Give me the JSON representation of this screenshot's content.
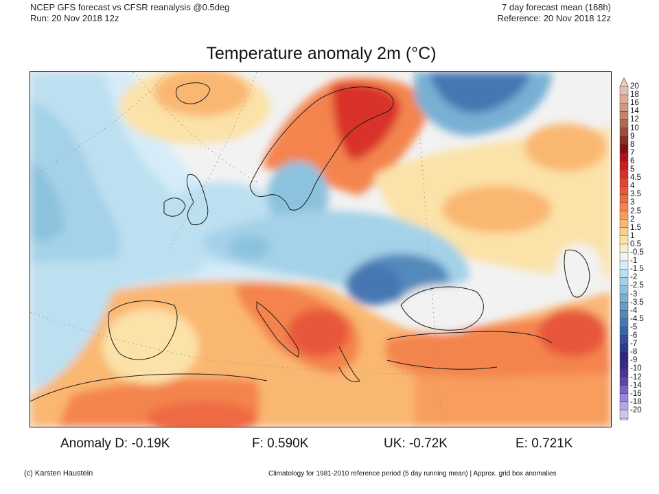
{
  "header": {
    "left_line1": "NCEP GFS forecast vs CFSR reanalysis @0.5deg",
    "left_line2": "Run: 20 Nov 2018 12z",
    "right_line1": "7 day forecast mean (168h)",
    "right_line2": "Reference: 20 Nov 2018 12z"
  },
  "title": "Temperature anomaly 2m (°C)",
  "map": {
    "region": "Europe, North Atlantic, North Africa, Middle East",
    "variable": "2m temperature anomaly",
    "units": "°C",
    "features": [
      {
        "name": "Scandinavia/Kola warm anomaly",
        "level": "4 to 7"
      },
      {
        "name": "Northern Russia cold anomaly",
        "level": "-3 to -5"
      },
      {
        "name": "Central/Eastern Europe cold anomaly",
        "level": "-1.5 to -4"
      },
      {
        "name": "North Atlantic cool anomaly",
        "level": "-1 to -3"
      },
      {
        "name": "Mediterranean, Balkans, Turkey, North Africa warm anomaly",
        "level": "2 to 5"
      },
      {
        "name": "Iceland warm anomaly",
        "level": "1.5 to 3"
      }
    ]
  },
  "colorbar": {
    "labels": [
      "20",
      "18",
      "16",
      "14",
      "12",
      "10",
      "9",
      "8",
      "7",
      "6",
      "5",
      "4.5",
      "4",
      "3.5",
      "3",
      "2.5",
      "2",
      "1.5",
      "1",
      "0.5",
      "-0.5",
      "-1",
      "-1.5",
      "-2",
      "-2.5",
      "-3",
      "-3.5",
      "-4",
      "-4.5",
      "-5",
      "-6",
      "-7",
      "-8",
      "-9",
      "-10",
      "-12",
      "-14",
      "-16",
      "-18",
      "-20"
    ],
    "colors": [
      "#e8bfae",
      "#dcab95",
      "#d09a82",
      "#c2856c",
      "#ae6a55",
      "#9c4e3c",
      "#8a2d22",
      "#8e0a0d",
      "#b0141a",
      "#c8201f",
      "#d83129",
      "#e24431",
      "#e8573a",
      "#ee6b42",
      "#f4844e",
      "#f79d5d",
      "#fab772",
      "#fccf8c",
      "#fbe2a8",
      "#f6eec8",
      "#f2f2f2",
      "#d6ecf8",
      "#bde0f1",
      "#a4d2e8",
      "#8dc2de",
      "#78b0d4",
      "#659dc8",
      "#538abc",
      "#4677b2",
      "#3c63a6",
      "#344e98",
      "#2e3c8c",
      "#2c2a80",
      "#3a2a88",
      "#4b3496",
      "#5e46a8",
      "#7b64c0",
      "#9a86d4",
      "#b5a7e2",
      "#cdc6ee"
    ],
    "top_extend_color": "#f0cdbf",
    "bottom_extend_color": "#d9d4f4"
  },
  "stats": {
    "d": "Anomaly D: -0.19K",
    "f": "F: 0.590K",
    "uk": "UK: -0.72K",
    "e": "E: 0.721K"
  },
  "footer": {
    "credit": "(c) Karsten Haustein",
    "note": "Climatology for 1981-2010 reference period (5 day running mean) | Approx. grid box anomalies"
  }
}
